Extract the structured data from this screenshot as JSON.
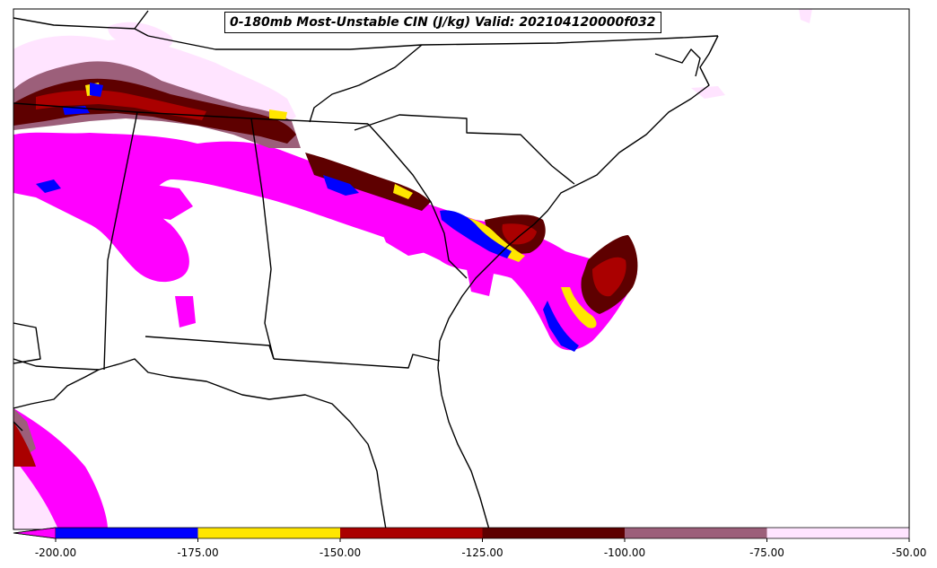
{
  "title": "0-180mb Most-Unstable CIN (J/kg) Valid: 202104120000f032",
  "colorbar": {
    "boundaries": [
      -200,
      -175,
      -150,
      -125,
      -100,
      -75,
      -50
    ],
    "tick_labels": [
      "-200.00",
      "-175.00",
      "-150.00",
      "-125.00",
      "-100.00",
      "-75.00",
      "-50.00"
    ],
    "colors": [
      "#0000ff",
      "#ffe600",
      "#aa0000",
      "#5e0000",
      "#9c5f7a",
      "#ffe4ff"
    ],
    "under_color": "#ff00ff",
    "extend": "min"
  },
  "fill_colors": {
    "magenta": "#ff00ff",
    "blue": "#0000ff",
    "yellow": "#ffe600",
    "red": "#aa0000",
    "darkred": "#5e0000",
    "mauve": "#9c5f7a",
    "pink": "#ffe4ff"
  }
}
